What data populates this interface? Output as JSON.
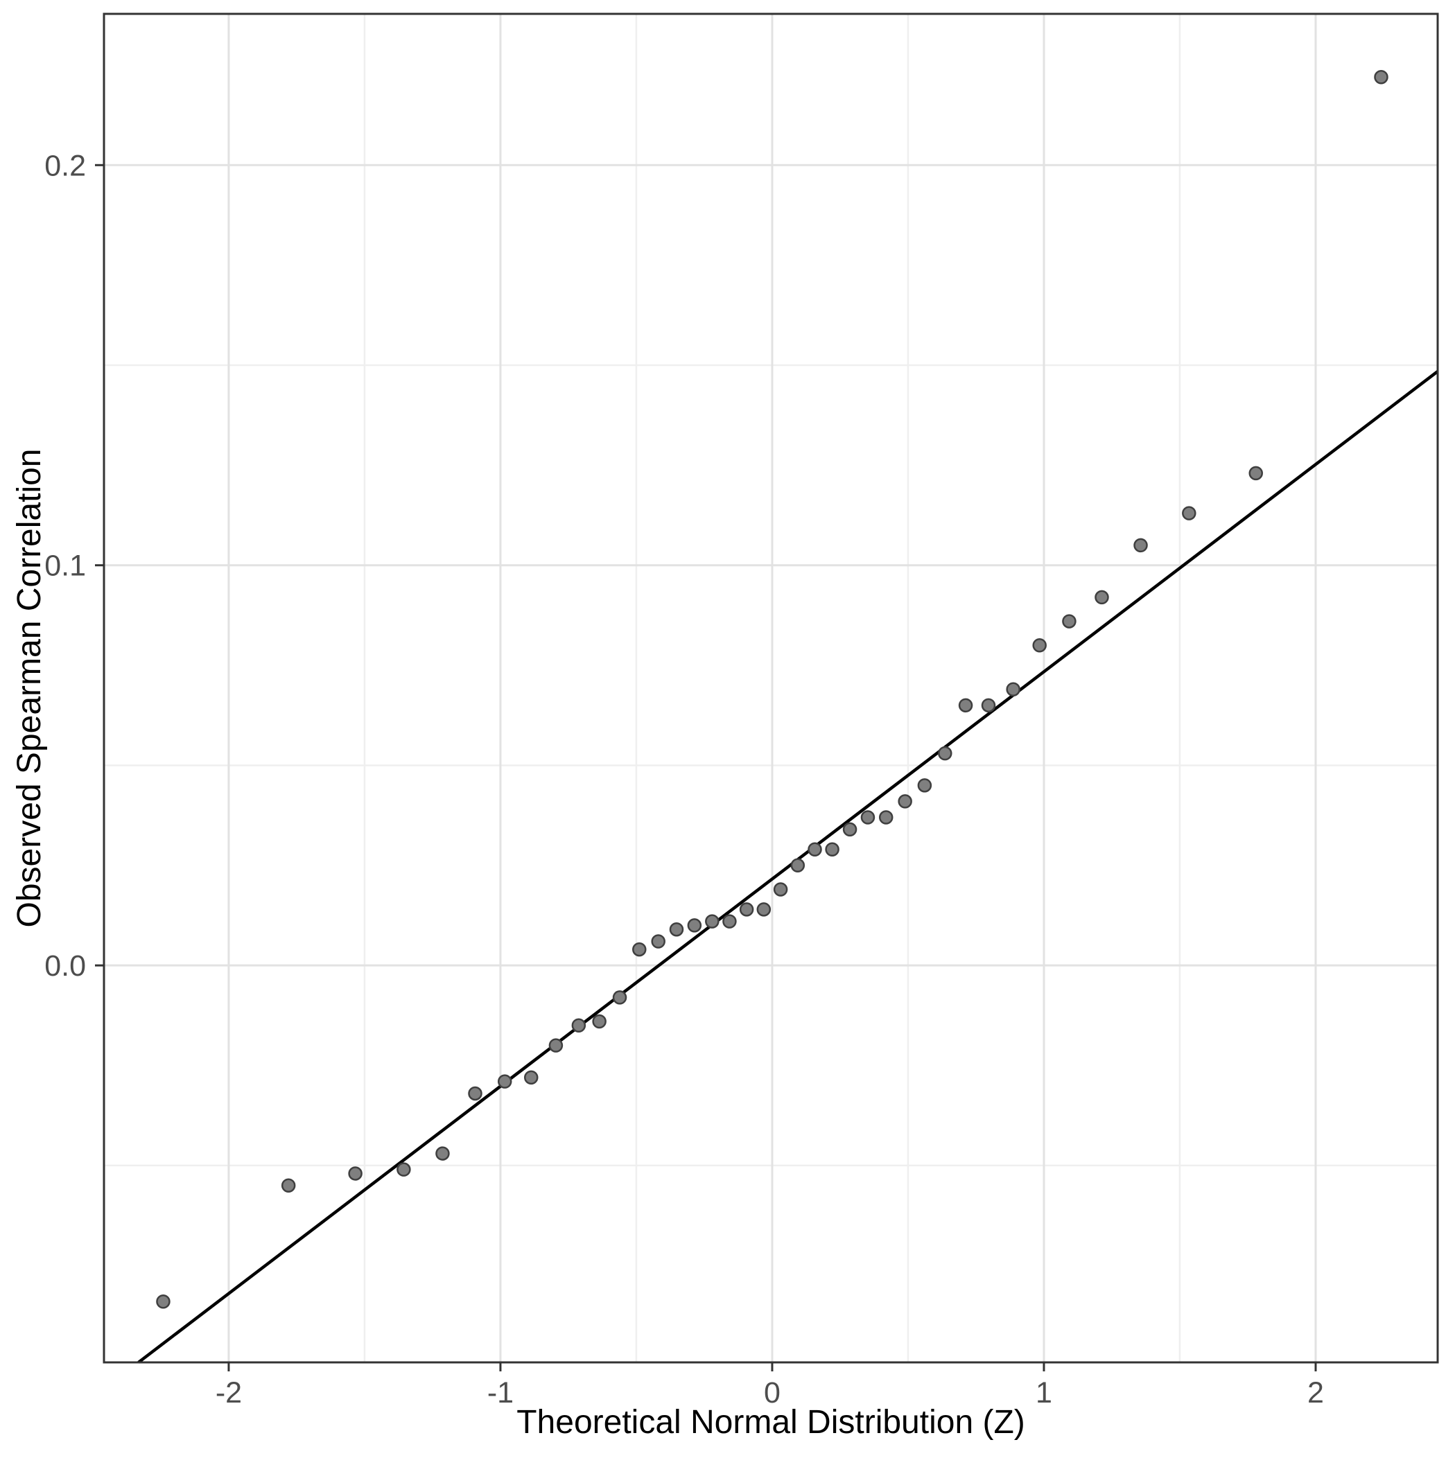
{
  "figure": {
    "kind": "qq-plot",
    "background": "#ffffff"
  },
  "chart_data": {
    "type": "scatter",
    "title": "",
    "xlabel": "Theoretical Normal Distribution (Z)",
    "ylabel": "Observed Spearman Correlation",
    "xlim": [
      -2.459,
      2.449
    ],
    "ylim": [
      -0.0992,
      0.2378
    ],
    "x_ticks": {
      "values": [
        -2,
        -1,
        0,
        1,
        2
      ],
      "labels": [
        "-2",
        "-1",
        "0",
        "1",
        "2"
      ]
    },
    "y_ticks": {
      "values": [
        0.0,
        0.1,
        0.2
      ],
      "labels": [
        "0.0",
        "0.1",
        "0.2"
      ]
    },
    "grid": {
      "major_x": [
        -2,
        -1,
        0,
        1,
        2
      ],
      "minor_x": [
        -1.5,
        -0.5,
        0.5,
        1.5
      ],
      "major_y": [
        0.0,
        0.1,
        0.2
      ],
      "minor_y": [
        -0.05,
        0.05,
        0.15
      ],
      "major_color": "#e2e2e2",
      "minor_color": "#efefef",
      "on": true
    },
    "legend_position": "none",
    "ref_line": {
      "intercept": 0.0216,
      "slope": 0.0518,
      "color": "#000000"
    },
    "points": [
      [
        -2.241,
        -0.084
      ],
      [
        -1.78,
        -0.055
      ],
      [
        -1.534,
        -0.052
      ],
      [
        -1.356,
        -0.051
      ],
      [
        -1.213,
        -0.047
      ],
      [
        -1.093,
        -0.032
      ],
      [
        -0.984,
        -0.029
      ],
      [
        -0.887,
        -0.028
      ],
      [
        -0.796,
        -0.02
      ],
      [
        -0.712,
        -0.015
      ],
      [
        -0.636,
        -0.014
      ],
      [
        -0.561,
        -0.008
      ],
      [
        -0.489,
        0.004
      ],
      [
        -0.419,
        0.006
      ],
      [
        -0.352,
        0.009
      ],
      [
        -0.286,
        0.01
      ],
      [
        -0.221,
        0.011
      ],
      [
        -0.157,
        0.011
      ],
      [
        -0.094,
        0.014
      ],
      [
        -0.031,
        0.014
      ],
      [
        0.031,
        0.019
      ],
      [
        0.094,
        0.025
      ],
      [
        0.157,
        0.029
      ],
      [
        0.221,
        0.029
      ],
      [
        0.286,
        0.034
      ],
      [
        0.352,
        0.037
      ],
      [
        0.419,
        0.037
      ],
      [
        0.489,
        0.041
      ],
      [
        0.561,
        0.045
      ],
      [
        0.636,
        0.053
      ],
      [
        0.712,
        0.065
      ],
      [
        0.796,
        0.065
      ],
      [
        0.887,
        0.069
      ],
      [
        0.984,
        0.08
      ],
      [
        1.093,
        0.086
      ],
      [
        1.213,
        0.092
      ],
      [
        1.356,
        0.105
      ],
      [
        1.534,
        0.113
      ],
      [
        1.78,
        0.123
      ],
      [
        2.241,
        0.222
      ]
    ],
    "point_style": {
      "fill": "#7f7f7f",
      "stroke": "#3f3f3f",
      "radius": 9,
      "stroke_width": 2.5
    },
    "panel_style": {
      "border_color": "#333333",
      "tick_color": "#333333",
      "background": "#ffffff"
    }
  }
}
